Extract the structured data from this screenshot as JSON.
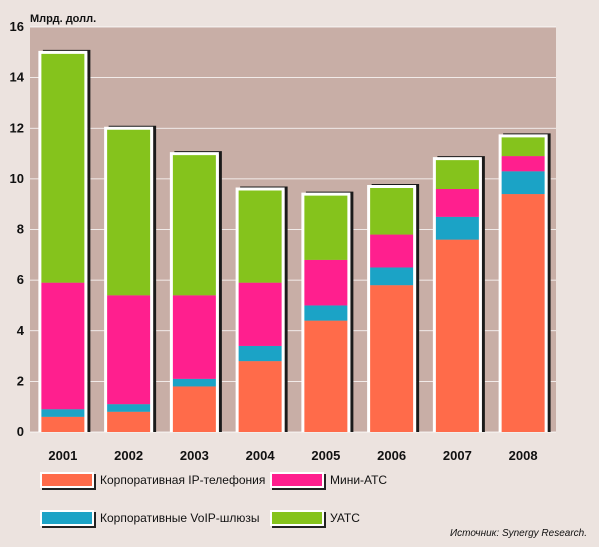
{
  "chart_data": {
    "type": "bar",
    "stacked": true,
    "unit_label": "Млрд. долл.",
    "categories": [
      "2001",
      "2002",
      "2003",
      "2004",
      "2005",
      "2006",
      "2007",
      "2008"
    ],
    "series": [
      {
        "name": "Корпоративная IP-телефония",
        "color": "#ff6b4a",
        "values": [
          0.6,
          0.8,
          1.8,
          2.8,
          4.4,
          5.8,
          7.6,
          9.4
        ]
      },
      {
        "name": "Корпоративные VoIP-шлюзы",
        "color": "#1ba3c6",
        "values": [
          0.3,
          0.3,
          0.3,
          0.6,
          0.6,
          0.7,
          0.9,
          0.9
        ]
      },
      {
        "name": "Мини-АТС",
        "color": "#ff1f8e",
        "values": [
          5.0,
          4.3,
          3.3,
          2.5,
          1.8,
          1.3,
          1.1,
          0.6
        ]
      },
      {
        "name": "УАТС",
        "color": "#85c31c",
        "values": [
          9.1,
          6.6,
          5.6,
          3.7,
          2.6,
          1.9,
          1.2,
          0.8
        ]
      }
    ],
    "ylim": [
      0,
      16
    ],
    "yticks": [
      "0",
      "2",
      "4",
      "6",
      "8",
      "10",
      "12",
      "14",
      "16"
    ],
    "grid": true,
    "plot_background": "#c8aea6",
    "legend_placement": "bottom"
  },
  "legend": [
    {
      "label": "Корпоративная IP-телефония",
      "color": "#ff6b4a"
    },
    {
      "label": "Мини-АТС",
      "color": "#ff1f8e"
    },
    {
      "label": "Корпоративные VoIP-шлюзы",
      "color": "#1ba3c6"
    },
    {
      "label": "УАТС",
      "color": "#85c31c"
    }
  ],
  "source": "Источник: Synergy Research."
}
